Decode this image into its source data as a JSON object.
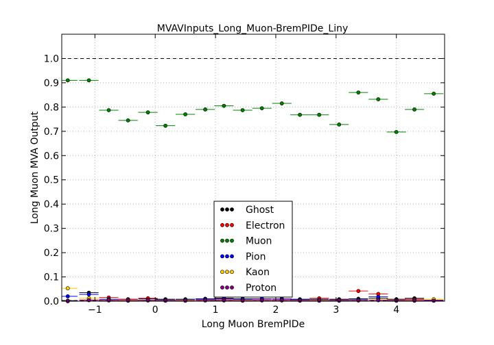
{
  "chart_data": {
    "type": "scatter",
    "title": "MVAVInputs_Long_Muon-BremPIDe_Liny",
    "xlabel": "Long Muon BremPIDe",
    "ylabel": "Long Muon MVA Output",
    "xlim": [
      -1.55,
      4.8
    ],
    "ylim": [
      0.0,
      1.1
    ],
    "xticks": [
      -1,
      0,
      1,
      2,
      3,
      4
    ],
    "xtick_labels": [
      "−1",
      "0",
      "1",
      "2",
      "3",
      "4"
    ],
    "yticks": [
      0.0,
      0.1,
      0.2,
      0.3,
      0.4,
      0.5,
      0.6,
      0.7,
      0.8,
      0.9,
      1.0
    ],
    "ytick_labels": [
      "0.0",
      "0.1",
      "0.2",
      "0.3",
      "0.4",
      "0.5",
      "0.6",
      "0.7",
      "0.8",
      "0.9",
      "1.0"
    ],
    "grid": true,
    "reference_line_y": 1.0,
    "legend_placement": "lower-center",
    "series": [
      {
        "name": "Ghost",
        "color": "#000000",
        "x": [
          -1.45,
          -1.1,
          -0.77,
          -0.45,
          -0.12,
          0.17,
          0.5,
          0.83,
          1.14,
          1.45,
          1.77,
          2.1,
          2.4,
          2.72,
          3.05,
          3.37,
          3.7,
          4.0,
          4.3,
          4.62
        ],
        "y": [
          0.002,
          0.035,
          0.005,
          0.008,
          0.01,
          0.008,
          0.008,
          0.01,
          0.012,
          0.01,
          0.01,
          0.01,
          0.008,
          0.008,
          0.008,
          0.01,
          0.012,
          0.008,
          0.012,
          0.004
        ]
      },
      {
        "name": "Electron",
        "color": "#ff0000",
        "x": [
          -1.45,
          -1.1,
          -0.77,
          -0.45,
          -0.12,
          0.17,
          0.5,
          0.83,
          1.14,
          1.45,
          1.77,
          2.1,
          2.4,
          2.72,
          3.05,
          3.37,
          3.7,
          4.0,
          4.3,
          4.62
        ],
        "y": [
          0.0,
          0.005,
          0.015,
          0.008,
          0.012,
          0.005,
          0.005,
          0.005,
          0.008,
          0.005,
          0.008,
          0.01,
          0.006,
          0.012,
          0.006,
          0.042,
          0.03,
          0.005,
          0.008,
          0.004
        ]
      },
      {
        "name": "Muon",
        "color": "#008000",
        "x": [
          -1.45,
          -1.1,
          -0.77,
          -0.45,
          -0.12,
          0.17,
          0.5,
          0.83,
          1.14,
          1.45,
          1.77,
          2.1,
          2.4,
          2.72,
          3.05,
          3.37,
          3.7,
          4.0,
          4.3,
          4.62
        ],
        "y": [
          0.91,
          0.91,
          0.787,
          0.745,
          0.778,
          0.723,
          0.77,
          0.79,
          0.805,
          0.787,
          0.795,
          0.815,
          0.768,
          0.768,
          0.728,
          0.86,
          0.832,
          0.697,
          0.79,
          0.855
        ]
      },
      {
        "name": "Pion",
        "color": "#0000ff",
        "x": [
          -1.45,
          -1.1,
          -0.77,
          -0.45,
          -0.12,
          0.17,
          0.5,
          0.83,
          1.14,
          1.45,
          1.77,
          2.1,
          2.4,
          2.72,
          3.05,
          3.37,
          3.7,
          4.0,
          4.3,
          4.62
        ],
        "y": [
          0.02,
          0.028,
          0.008,
          0.005,
          0.005,
          0.005,
          0.005,
          0.008,
          0.01,
          0.008,
          0.01,
          0.008,
          0.006,
          0.005,
          0.005,
          0.006,
          0.018,
          0.004,
          0.005,
          0.003
        ]
      },
      {
        "name": "Kaon",
        "color": "#ffcc00",
        "x": [
          -1.45,
          -1.1,
          -0.77,
          -0.45,
          -0.12,
          0.17,
          0.5,
          0.83,
          1.14,
          1.45,
          1.77,
          2.1,
          2.4,
          2.72,
          3.05,
          3.37,
          3.7,
          4.0,
          4.3,
          4.62
        ],
        "y": [
          0.053,
          0.012,
          0.005,
          0.004,
          0.004,
          0.003,
          0.004,
          0.004,
          0.005,
          0.004,
          0.004,
          0.004,
          0.003,
          0.004,
          0.003,
          0.004,
          0.006,
          0.003,
          0.004,
          0.008
        ]
      },
      {
        "name": "Proton",
        "color": "#800080",
        "x": [
          -1.45,
          -1.1,
          -0.77,
          -0.45,
          -0.12,
          0.17,
          0.5,
          0.83,
          1.14,
          1.45,
          1.77,
          2.1,
          2.4,
          2.72,
          3.05,
          3.37,
          3.7,
          4.0,
          4.3,
          4.62
        ],
        "y": [
          0.0,
          0.004,
          0.003,
          0.002,
          0.003,
          0.002,
          0.002,
          0.003,
          0.003,
          0.002,
          0.003,
          0.003,
          0.002,
          0.002,
          0.002,
          0.003,
          0.004,
          0.002,
          0.002,
          0.002
        ]
      }
    ]
  }
}
